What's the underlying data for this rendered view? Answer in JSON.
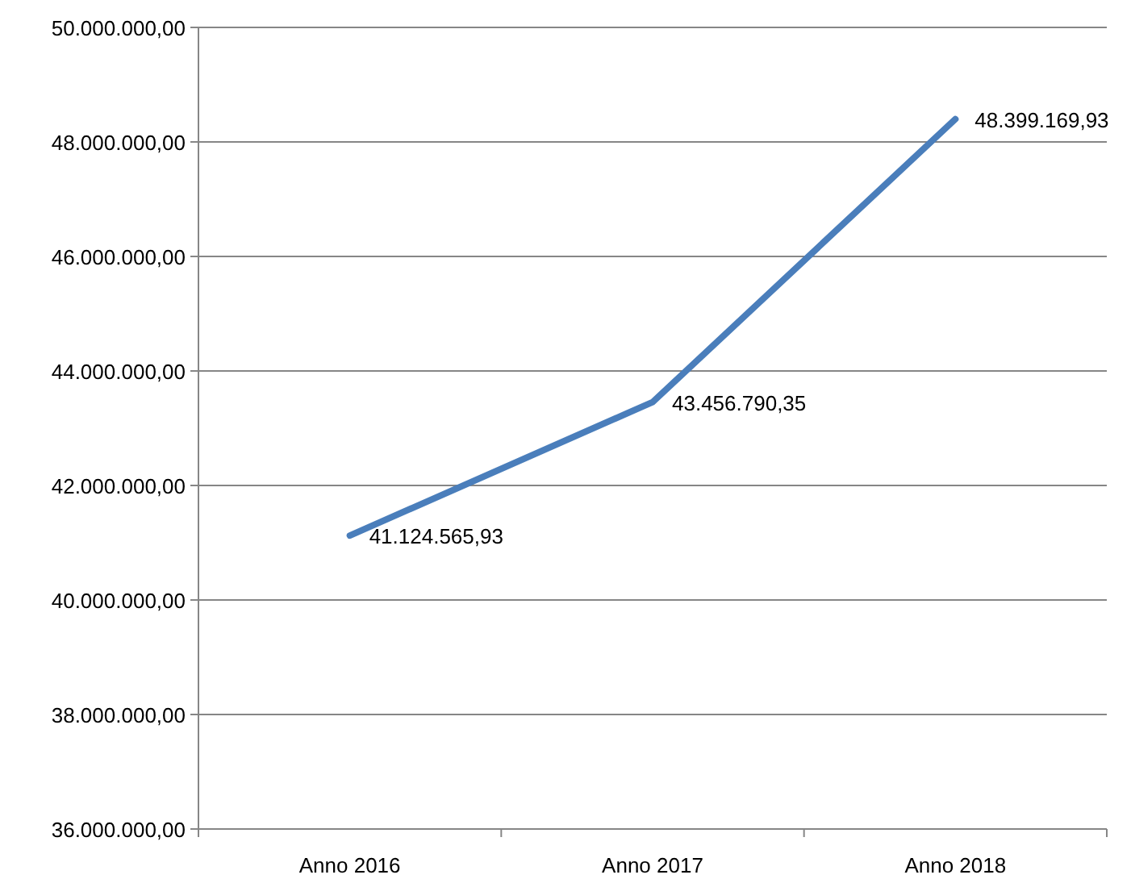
{
  "chart_data": {
    "type": "line",
    "categories": [
      "Anno 2016",
      "Anno 2017",
      "Anno 2018"
    ],
    "series": [
      {
        "color": "#4a7ebb",
        "values": [
          41124565.93,
          43456790.35,
          48399169.93
        ],
        "value_labels": [
          "41.124.565,93",
          "43.456.790,35",
          "48.399.169,93"
        ]
      }
    ],
    "ylim": [
      36000000,
      50000000
    ],
    "yticks": [
      {
        "value": 36000000,
        "label": "36.000.000,00"
      },
      {
        "value": 38000000,
        "label": "38.000.000,00"
      },
      {
        "value": 40000000,
        "label": "40.000.000,00"
      },
      {
        "value": 42000000,
        "label": "42.000.000,00"
      },
      {
        "value": 44000000,
        "label": "44.000.000,00"
      },
      {
        "value": 46000000,
        "label": "46.000.000,00"
      },
      {
        "value": 48000000,
        "label": "48.000.000,00"
      },
      {
        "value": 50000000,
        "label": "50.000.000,00"
      }
    ],
    "grid": "y",
    "marker": "none",
    "line_style": "solid"
  }
}
